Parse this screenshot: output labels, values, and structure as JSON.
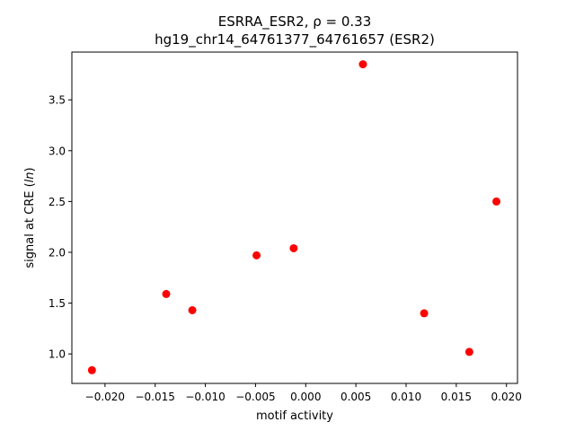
{
  "chart_data": {
    "type": "scatter",
    "title_line1": "ESRRA_ESR2, ρ = 0.33",
    "title_line2": "hg19_chr14_64761377_64761657 (ESR2)",
    "xlabel": "motif activity",
    "ylabel": "signal at CRE (ln)",
    "xlim": [
      -0.0233,
      0.0211
    ],
    "ylim": [
      0.71,
      3.97
    ],
    "xticks": [
      -0.02,
      -0.015,
      -0.01,
      -0.005,
      0.0,
      0.005,
      0.01,
      0.015,
      0.02
    ],
    "xtick_labels": [
      "−0.020",
      "−0.015",
      "−0.010",
      "−0.005",
      "0.000",
      "0.005",
      "0.010",
      "0.015",
      "0.020"
    ],
    "yticks": [
      1.0,
      1.5,
      2.0,
      2.5,
      3.0,
      3.5
    ],
    "ytick_labels": [
      "1.0",
      "1.5",
      "2.0",
      "2.5",
      "3.0",
      "3.5"
    ],
    "marker_color": "#ff0000",
    "grid": false,
    "points": [
      {
        "x": -0.0213,
        "y": 0.84
      },
      {
        "x": -0.0139,
        "y": 1.59
      },
      {
        "x": -0.0113,
        "y": 1.43
      },
      {
        "x": -0.0049,
        "y": 1.97
      },
      {
        "x": -0.0012,
        "y": 2.04
      },
      {
        "x": 0.0057,
        "y": 3.85
      },
      {
        "x": 0.0118,
        "y": 1.4
      },
      {
        "x": 0.0163,
        "y": 1.02
      },
      {
        "x": 0.019,
        "y": 2.5
      }
    ]
  }
}
